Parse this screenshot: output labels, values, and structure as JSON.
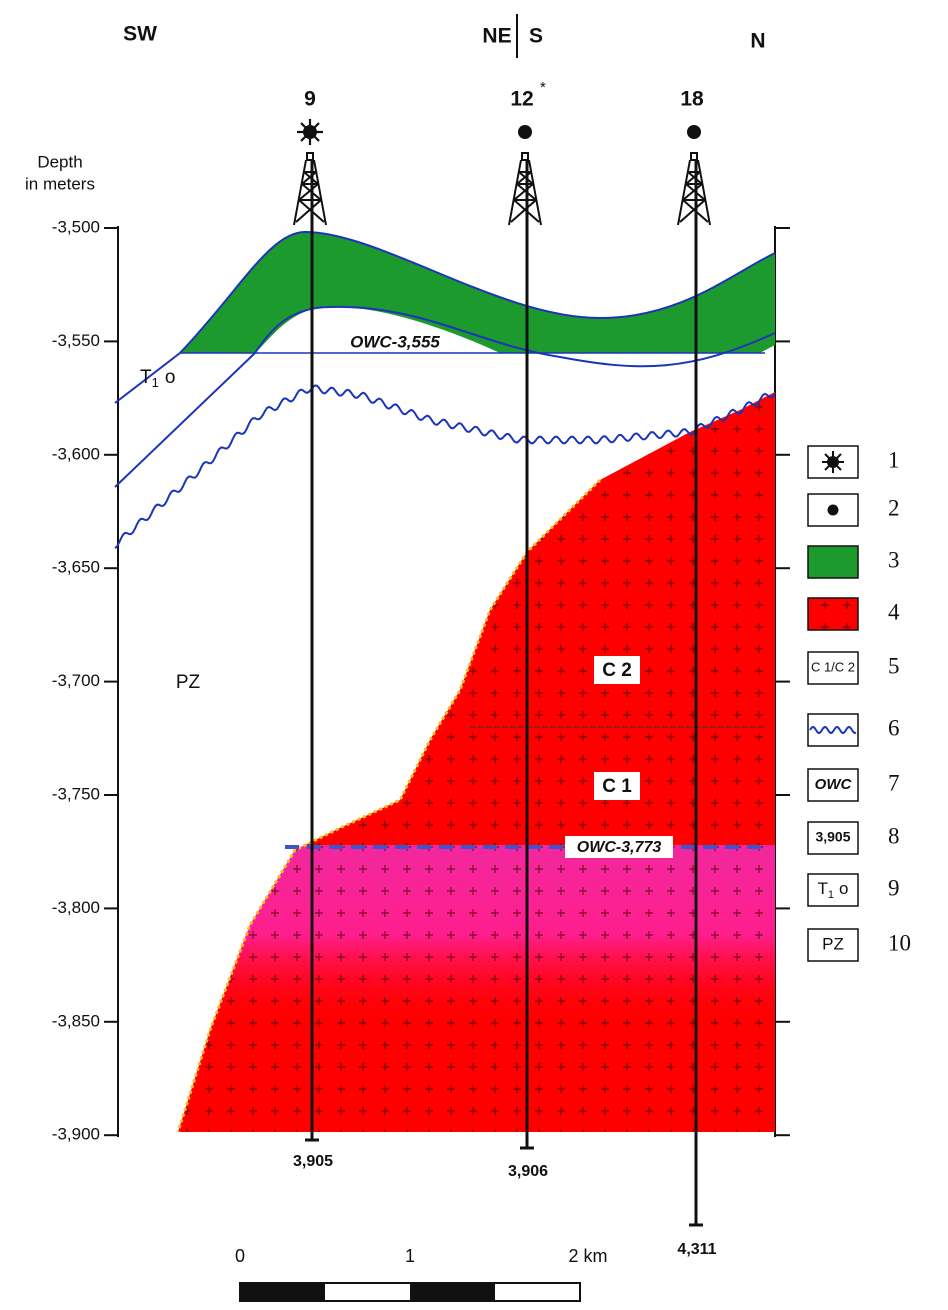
{
  "directions": {
    "left": "SW",
    "center_left": "NE",
    "center_right": "S",
    "right": "N"
  },
  "wells": [
    {
      "label": "9",
      "bottom": "3,905"
    },
    {
      "label": "12",
      "marker": "*",
      "bottom": "3,906"
    },
    {
      "label": "18",
      "bottom": "4,311"
    }
  ],
  "axis": {
    "title_lines": [
      "Depth",
      "in meters"
    ],
    "ticks": [
      "-3,500",
      "-3,550",
      "-3,600",
      "-3,650",
      "-3,700",
      "-3,750",
      "-3,800",
      "-3,850",
      "-3,900"
    ]
  },
  "annotations": {
    "owc_upper": "OWC-3,555",
    "owc_lower": "OWC-3,773",
    "c2": "C 2",
    "c1": "C 1",
    "t1o": {
      "text": "T",
      "sub": "1",
      "suffix": "o"
    },
    "pz": "PZ"
  },
  "legend": [
    {
      "number": "1"
    },
    {
      "number": "2"
    },
    {
      "number": "3"
    },
    {
      "number": "4"
    },
    {
      "number": "5",
      "label": "C 1/C 2"
    },
    {
      "number": "6"
    },
    {
      "number": "7",
      "label": "OWC"
    },
    {
      "number": "8",
      "label": "3,905"
    },
    {
      "number": "9",
      "label": {
        "text": "T",
        "sub": "1",
        "suffix": "o"
      }
    },
    {
      "number": "10",
      "label": "PZ"
    }
  ],
  "scale_bar": {
    "labels": [
      "0",
      "1",
      "2 km"
    ]
  }
}
